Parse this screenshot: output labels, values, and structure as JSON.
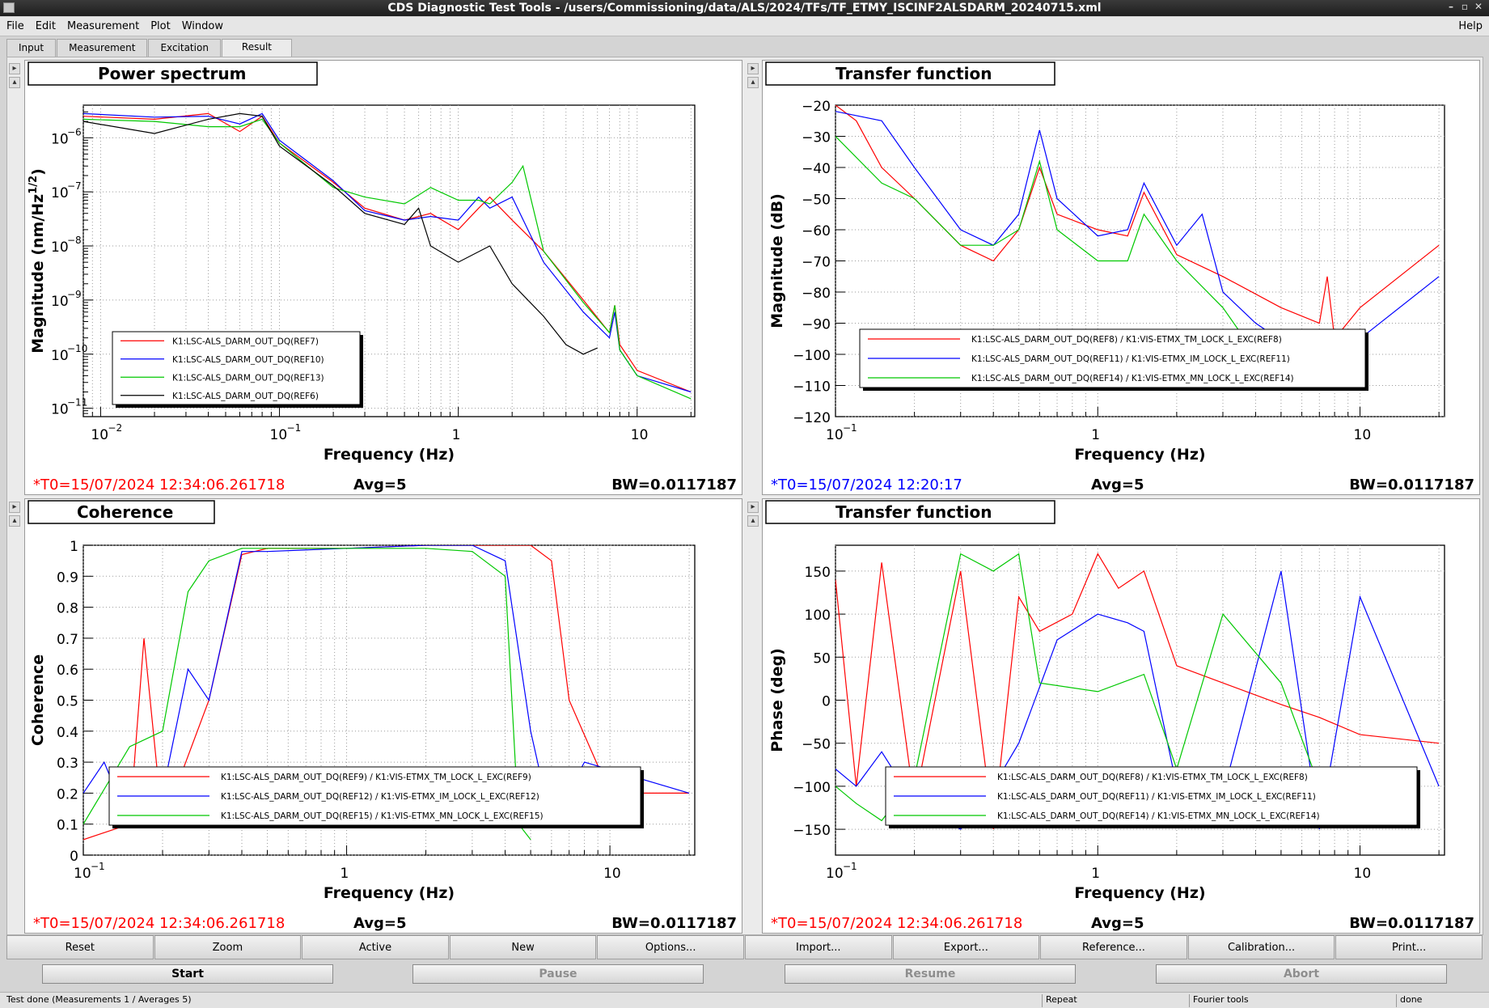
{
  "window": {
    "title": "CDS Diagnostic Test Tools - /users/Commissioning/data/ALS/2024/TFs/TF_ETMY_ISCINF2ALSDARM_20240715.xml"
  },
  "menu": [
    "File",
    "Edit",
    "Measurement",
    "Plot",
    "Window"
  ],
  "help_label": "Help",
  "tabs": [
    "Input",
    "Measurement",
    "Excitation",
    "Result"
  ],
  "active_tab": "Result",
  "colors": {
    "red": "#ff0000",
    "blue": "#0000ff",
    "green": "#00c800",
    "black": "#000000"
  },
  "plots": [
    {
      "title": "Power spectrum",
      "chart_data": {
        "type": "line",
        "xscale": "log",
        "yscale": "log",
        "xlim": [
          0.008,
          21
        ],
        "ylim": [
          7e-12,
          4e-06
        ],
        "xlabel": "Frequency (Hz)",
        "ylabel": "Magnitude (nm/Hz",
        "ylabel_sup": "1/2",
        "ylabel_close": ")",
        "xticks": [
          "10",
          "10",
          "1",
          "10"
        ],
        "xtick_sup": [
          "−2",
          "−1",
          "",
          ""
        ],
        "yticks": [
          "10",
          "10",
          "10",
          "10",
          "10",
          "10"
        ],
        "ytick_sup": [
          "−6",
          "−7",
          "−8",
          "−9",
          "−10",
          "−11"
        ],
        "legend": [
          "K1:LSC-ALS_DARM_OUT_DQ(REF7)",
          "K1:LSC-ALS_DARM_OUT_DQ(REF10)",
          "K1:LSC-ALS_DARM_OUT_DQ(REF13)",
          "K1:LSC-ALS_DARM_OUT_DQ(REF6)"
        ],
        "series": [
          {
            "name": "K1:LSC-ALS_DARM_OUT_DQ(REF7)",
            "color": "red",
            "x": [
              0.008,
              0.02,
              0.04,
              0.06,
              0.08,
              0.1,
              0.2,
              0.3,
              0.5,
              0.7,
              1,
              1.3,
              1.5,
              2,
              3,
              5,
              7,
              7.5,
              8,
              10,
              20
            ],
            "y": [
              2.5e-06,
              2.2e-06,
              2.8e-06,
              1.3e-06,
              2.5e-06,
              8e-07,
              1.5e-07,
              5e-08,
              3e-08,
              4e-08,
              2e-08,
              5e-08,
              8e-08,
              3e-08,
              8e-09,
              1e-09,
              2.5e-10,
              8e-10,
              1.5e-10,
              5e-11,
              2e-11
            ]
          },
          {
            "name": "K1:LSC-ALS_DARM_OUT_DQ(REF10)",
            "color": "blue",
            "x": [
              0.008,
              0.02,
              0.04,
              0.06,
              0.08,
              0.1,
              0.2,
              0.3,
              0.5,
              0.7,
              1,
              1.3,
              1.5,
              2,
              3,
              5,
              7,
              7.5,
              8,
              10,
              20
            ],
            "y": [
              2.8e-06,
              2.4e-06,
              2.5e-06,
              1.8e-06,
              2.8e-06,
              9e-07,
              1.6e-07,
              4.5e-08,
              3e-08,
              3.5e-08,
              3e-08,
              8e-08,
              5e-08,
              8e-08,
              5e-09,
              6e-10,
              2e-10,
              6e-10,
              1.2e-10,
              4e-11,
              2e-11
            ]
          },
          {
            "name": "K1:LSC-ALS_DARM_OUT_DQ(REF13)",
            "color": "green",
            "x": [
              0.008,
              0.02,
              0.04,
              0.06,
              0.08,
              0.1,
              0.2,
              0.3,
              0.5,
              0.7,
              1,
              1.3,
              1.5,
              2,
              2.3,
              3,
              5,
              7,
              7.5,
              8,
              10,
              20
            ],
            "y": [
              2.2e-06,
              2e-06,
              1.6e-06,
              1.6e-06,
              2.2e-06,
              8e-07,
              1.2e-07,
              8e-08,
              6e-08,
              1.2e-07,
              7e-08,
              7e-08,
              6e-08,
              1.5e-07,
              3e-07,
              8e-09,
              9e-10,
              2.5e-10,
              8e-10,
              1.2e-10,
              4e-11,
              1.5e-11
            ]
          },
          {
            "name": "K1:LSC-ALS_DARM_OUT_DQ(REF6)",
            "color": "black",
            "x": [
              0.008,
              0.02,
              0.04,
              0.06,
              0.08,
              0.1,
              0.2,
              0.3,
              0.5,
              0.6,
              0.7,
              1,
              1.5,
              2,
              3,
              4,
              5,
              6
            ],
            "y": [
              2e-06,
              1.2e-06,
              2.2e-06,
              2.8e-06,
              2.5e-06,
              7e-07,
              1.3e-07,
              4e-08,
              2.5e-08,
              5e-08,
              1e-08,
              5e-09,
              1e-08,
              2e-09,
              5e-10,
              1.5e-10,
              1e-10,
              1.3e-10
            ]
          }
        ]
      },
      "t0": "*T0=15/07/2024 12:34:06.261718",
      "t0_color": "red",
      "avg": "Avg=5",
      "bw": "BW=0.0117187"
    },
    {
      "title": "Transfer function",
      "chart_data": {
        "type": "line",
        "xscale": "log",
        "yscale": "linear",
        "xlim": [
          0.1,
          21
        ],
        "ylim": [
          -120,
          -20
        ],
        "xlabel": "Frequency (Hz)",
        "ylabel": "Magnitude (dB)",
        "xticks": [
          "10",
          "1",
          "10"
        ],
        "xtick_sup": [
          "−1",
          "",
          ""
        ],
        "yticks": [
          "−20",
          "−30",
          "−40",
          "−50",
          "−60",
          "−70",
          "−80",
          "−90",
          "−100",
          "−110",
          "−120"
        ],
        "legend": [
          "K1:LSC-ALS_DARM_OUT_DQ(REF8) / K1:VIS-ETMX_TM_LOCK_L_EXC(REF8)",
          "K1:LSC-ALS_DARM_OUT_DQ(REF11) / K1:VIS-ETMX_IM_LOCK_L_EXC(REF11)",
          "K1:LSC-ALS_DARM_OUT_DQ(REF14) / K1:VIS-ETMX_MN_LOCK_L_EXC(REF14)"
        ],
        "series": [
          {
            "name": "K1:LSC-ALS_DARM_OUT_DQ(REF8) / K1:VIS-ETMX_TM_LOCK_L_EXC(REF8)",
            "color": "red",
            "x": [
              0.1,
              0.12,
              0.15,
              0.2,
              0.3,
              0.4,
              0.5,
              0.6,
              0.7,
              1,
              1.3,
              1.5,
              2,
              3,
              5,
              7,
              7.5,
              8,
              10,
              20
            ],
            "y": [
              -20,
              -25,
              -40,
              -50,
              -65,
              -70,
              -60,
              -40,
              -55,
              -60,
              -62,
              -48,
              -68,
              -75,
              -85,
              -90,
              -75,
              -95,
              -85,
              -65
            ]
          },
          {
            "name": "K1:LSC-ALS_DARM_OUT_DQ(REF11) / K1:VIS-ETMX_IM_LOCK_L_EXC(REF11)",
            "color": "blue",
            "x": [
              0.1,
              0.15,
              0.2,
              0.3,
              0.4,
              0.5,
              0.6,
              0.7,
              1,
              1.3,
              1.5,
              2,
              2.5,
              3,
              4,
              6,
              8,
              10,
              20
            ],
            "y": [
              -22,
              -25,
              -40,
              -60,
              -65,
              -55,
              -28,
              -50,
              -62,
              -60,
              -45,
              -65,
              -55,
              -80,
              -90,
              -100,
              -100,
              -95,
              -75
            ]
          },
          {
            "name": "K1:LSC-ALS_DARM_OUT_DQ(REF14) / K1:VIS-ETMX_MN_LOCK_L_EXC(REF14)",
            "color": "green",
            "x": [
              0.1,
              0.15,
              0.2,
              0.3,
              0.4,
              0.5,
              0.6,
              0.7,
              1,
              1.3,
              1.5,
              2,
              3,
              4,
              5
            ],
            "y": [
              -30,
              -45,
              -50,
              -65,
              -65,
              -60,
              -38,
              -60,
              -70,
              -70,
              -55,
              -70,
              -85,
              -100,
              -110
            ]
          }
        ]
      },
      "t0": "*T0=15/07/2024 12:20:17",
      "t0_color": "blue",
      "avg": "Avg=5",
      "bw": "BW=0.0117187"
    },
    {
      "title": "Coherence",
      "chart_data": {
        "type": "line",
        "xscale": "log",
        "yscale": "linear",
        "xlim": [
          0.1,
          21
        ],
        "ylim": [
          0,
          1
        ],
        "xlabel": "Frequency (Hz)",
        "ylabel": "Coherence",
        "xticks": [
          "10",
          "1",
          "10"
        ],
        "xtick_sup": [
          "−1",
          "",
          ""
        ],
        "yticks": [
          "1",
          "0.9",
          "0.8",
          "0.7",
          "0.6",
          "0.5",
          "0.4",
          "0.3",
          "0.2",
          "0.1",
          "0"
        ],
        "legend": [
          "K1:LSC-ALS_DARM_OUT_DQ(REF9) / K1:VIS-ETMX_TM_LOCK_L_EXC(REF9)",
          "K1:LSC-ALS_DARM_OUT_DQ(REF12) / K1:VIS-ETMX_IM_LOCK_L_EXC(REF12)",
          "K1:LSC-ALS_DARM_OUT_DQ(REF15) / K1:VIS-ETMX_MN_LOCK_L_EXC(REF15)"
        ],
        "series": [
          {
            "name": "K1:LSC-ALS_DARM_OUT_DQ(REF9) / K1:VIS-ETMX_TM_LOCK_L_EXC(REF9)",
            "color": "red",
            "x": [
              0.1,
              0.15,
              0.17,
              0.2,
              0.3,
              0.4,
              0.5,
              0.7,
              1,
              2,
              3,
              5,
              6,
              7,
              10,
              20
            ],
            "y": [
              0.05,
              0.1,
              0.7,
              0.1,
              0.5,
              0.97,
              0.99,
              0.99,
              0.99,
              1,
              1,
              1,
              0.95,
              0.5,
              0.2,
              0.2
            ]
          },
          {
            "name": "K1:LSC-ALS_DARM_OUT_DQ(REF12) / K1:VIS-ETMX_IM_LOCK_L_EXC(REF12)",
            "color": "blue",
            "x": [
              0.1,
              0.12,
              0.15,
              0.2,
              0.25,
              0.3,
              0.4,
              0.5,
              1,
              2,
              3,
              4,
              5,
              6,
              8,
              20
            ],
            "y": [
              0.2,
              0.3,
              0.1,
              0.2,
              0.6,
              0.5,
              0.98,
              0.98,
              0.99,
              1,
              1,
              0.95,
              0.4,
              0.1,
              0.3,
              0.2
            ]
          },
          {
            "name": "K1:LSC-ALS_DARM_OUT_DQ(REF15) / K1:VIS-ETMX_MN_LOCK_L_EXC(REF15)",
            "color": "green",
            "x": [
              0.1,
              0.15,
              0.2,
              0.25,
              0.3,
              0.4,
              0.5,
              1,
              2,
              3,
              4,
              4.5,
              5
            ],
            "y": [
              0.1,
              0.35,
              0.4,
              0.85,
              0.95,
              0.99,
              0.99,
              0.99,
              0.99,
              0.98,
              0.9,
              0.1,
              0.05
            ]
          }
        ]
      },
      "t0": "*T0=15/07/2024 12:34:06.261718",
      "t0_color": "red",
      "avg": "Avg=5",
      "bw": "BW=0.0117187"
    },
    {
      "title": "Transfer function",
      "chart_data": {
        "type": "line",
        "xscale": "log",
        "yscale": "linear",
        "xlim": [
          0.1,
          21
        ],
        "ylim": [
          -180,
          180
        ],
        "xlabel": "Frequency (Hz)",
        "ylabel": "Phase (deg)",
        "xticks": [
          "10",
          "1",
          "10"
        ],
        "xtick_sup": [
          "−1",
          "",
          ""
        ],
        "yticks": [
          "150",
          "100",
          "50",
          "0",
          "−50",
          "−100",
          "−150"
        ],
        "legend": [
          "K1:LSC-ALS_DARM_OUT_DQ(REF8) / K1:VIS-ETMX_TM_LOCK_L_EXC(REF8)",
          "K1:LSC-ALS_DARM_OUT_DQ(REF11) / K1:VIS-ETMX_IM_LOCK_L_EXC(REF11)",
          "K1:LSC-ALS_DARM_OUT_DQ(REF14) / K1:VIS-ETMX_MN_LOCK_L_EXC(REF14)"
        ],
        "series": [
          {
            "name": "K1:LSC-ALS_DARM_OUT_DQ(REF8) / K1:VIS-ETMX_TM_LOCK_L_EXC(REF8)",
            "color": "red",
            "x": [
              0.1,
              0.12,
              0.15,
              0.2,
              0.3,
              0.4,
              0.5,
              0.6,
              0.8,
              1,
              1.2,
              1.5,
              2,
              3,
              5,
              7,
              10,
              20
            ],
            "y": [
              140,
              -100,
              160,
              -120,
              150,
              -150,
              120,
              80,
              100,
              170,
              130,
              150,
              40,
              20,
              -5,
              -20,
              -40,
              -50
            ]
          },
          {
            "name": "K1:LSC-ALS_DARM_OUT_DQ(REF11) / K1:VIS-ETMX_IM_LOCK_L_EXC(REF11)",
            "color": "blue",
            "x": [
              0.1,
              0.12,
              0.15,
              0.2,
              0.3,
              0.4,
              0.5,
              0.7,
              1,
              1.3,
              1.5,
              2,
              3,
              5,
              7,
              10,
              20
            ],
            "y": [
              -80,
              -100,
              -60,
              -120,
              -150,
              -100,
              -50,
              70,
              100,
              90,
              80,
              -100,
              -110,
              150,
              -150,
              120,
              -100
            ]
          },
          {
            "name": "K1:LSC-ALS_DARM_OUT_DQ(REF14) / K1:VIS-ETMX_MN_LOCK_L_EXC(REF14)",
            "color": "green",
            "x": [
              0.1,
              0.12,
              0.15,
              0.2,
              0.3,
              0.4,
              0.5,
              0.6,
              1,
              1.5,
              2,
              3,
              5,
              7
            ],
            "y": [
              -100,
              -120,
              -140,
              -90,
              170,
              150,
              170,
              20,
              10,
              30,
              -80,
              100,
              20,
              -100
            ]
          }
        ]
      },
      "t0": "*T0=15/07/2024 12:34:06.261718",
      "t0_color": "red",
      "avg": "Avg=5",
      "bw": "BW=0.0117187"
    }
  ],
  "buttons": [
    "Reset",
    "Zoom",
    "Active",
    "New",
    "Options...",
    "Import...",
    "Export...",
    "Reference...",
    "Calibration...",
    "Print..."
  ],
  "controls": {
    "start": "Start",
    "pause": "Pause",
    "resume": "Resume",
    "abort": "Abort"
  },
  "status": {
    "message": "Test done (Measurements 1 / Averages 5)",
    "repeat": "Repeat",
    "fourier": "Fourier tools",
    "state": "done"
  }
}
